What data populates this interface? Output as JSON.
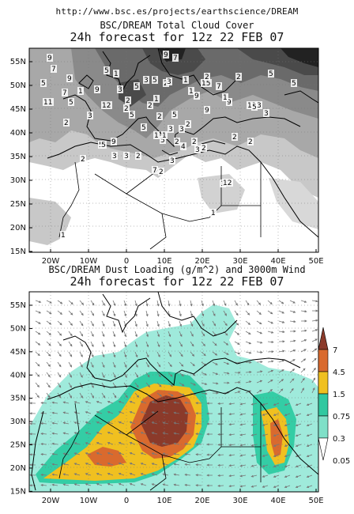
{
  "header": {
    "url": "http://www.bsc.es/projects/earthscience/DREAM"
  },
  "panels": [
    {
      "title": "BSC/DREAM Total Cloud Cover",
      "subtitle": "24h forecast for 12z 22 FEB 07",
      "lat_labels": [
        "55N",
        "50N",
        "45N",
        "40N",
        "35N",
        "30N",
        "25N",
        "20N",
        "15N"
      ],
      "lon_labels": [
        "20W",
        "10W",
        "0",
        "10E",
        "20E",
        "30E",
        "40E",
        "50E"
      ],
      "contour_labels": [
        "9",
        "7",
        "5",
        "9",
        "7",
        "1",
        "9",
        "7",
        "5",
        "1",
        "11",
        "5",
        "9",
        "5",
        "2",
        "3",
        "12",
        "3",
        "2",
        "2",
        "5",
        "1",
        "15",
        "2",
        "9",
        "1",
        "7",
        "2",
        "9",
        "1",
        "11",
        "5",
        "3",
        "5",
        "5",
        "3",
        "2",
        "2",
        "5",
        "1",
        "3",
        "5",
        "3",
        "2",
        "2",
        "5",
        "3",
        "2",
        "9",
        "5",
        "1",
        "5",
        "2",
        "2",
        "9",
        "2",
        "4",
        "3",
        "2",
        "1",
        "3",
        "5",
        "3",
        "2",
        "3",
        "2",
        "3",
        "2",
        "7",
        "1",
        "1",
        "1",
        "12"
      ]
    },
    {
      "title": "BSC/DREAM Dust Loading (g/m^2) and 3000m Wind",
      "subtitle": "24h forecast for 12z 22 FEB 07",
      "lat_labels": [
        "55N",
        "50N",
        "45N",
        "40N",
        "35N",
        "30N",
        "25N",
        "20N",
        "15N"
      ],
      "lon_labels": [
        "20W",
        "10W",
        "0",
        "10E",
        "20E",
        "30E",
        "40E",
        "50E"
      ],
      "legend": {
        "labels": [
          "7",
          "4.5",
          "1.5",
          "0.75",
          "0.3",
          "0.05"
        ],
        "colors": [
          "#8b3a2a",
          "#d96a2e",
          "#f0c020",
          "#30c8a0",
          "#7fe0c8",
          "#ffffff"
        ]
      }
    }
  ]
}
